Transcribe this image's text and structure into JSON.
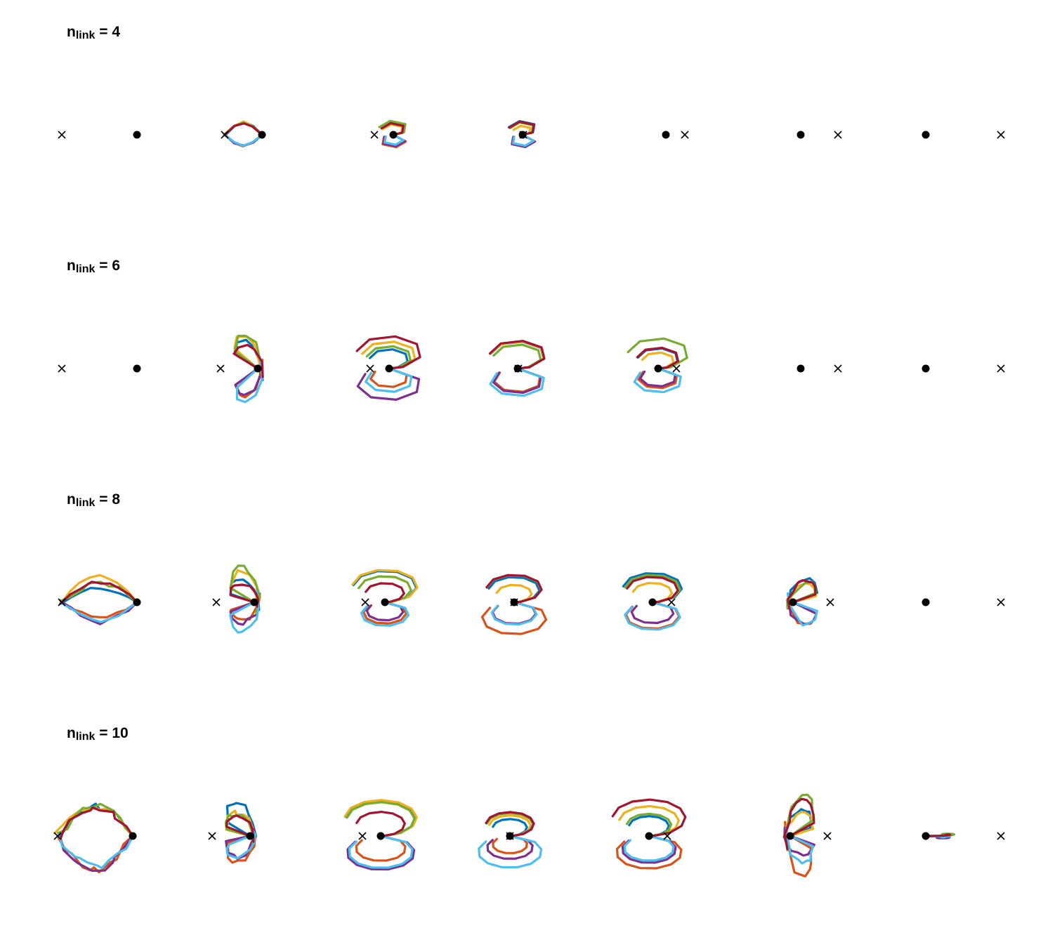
{
  "figure": {
    "rows": [
      {
        "label_main": "n",
        "label_sub": "link",
        "label_eq": " = 4"
      },
      {
        "label_main": "n",
        "label_sub": "link",
        "label_eq": " = 6"
      },
      {
        "label_main": "n",
        "label_sub": "link",
        "label_eq": " = 8"
      },
      {
        "label_main": "n",
        "label_sub": "link",
        "label_eq": " = 10"
      }
    ],
    "palette": [
      "#0072BD",
      "#D95319",
      "#EDB120",
      "#7E2F8E",
      "#77AC30",
      "#4DBEEE",
      "#A2142F"
    ],
    "goal_marker": "x-cross",
    "base_marker": "filled-circle"
  }
}
